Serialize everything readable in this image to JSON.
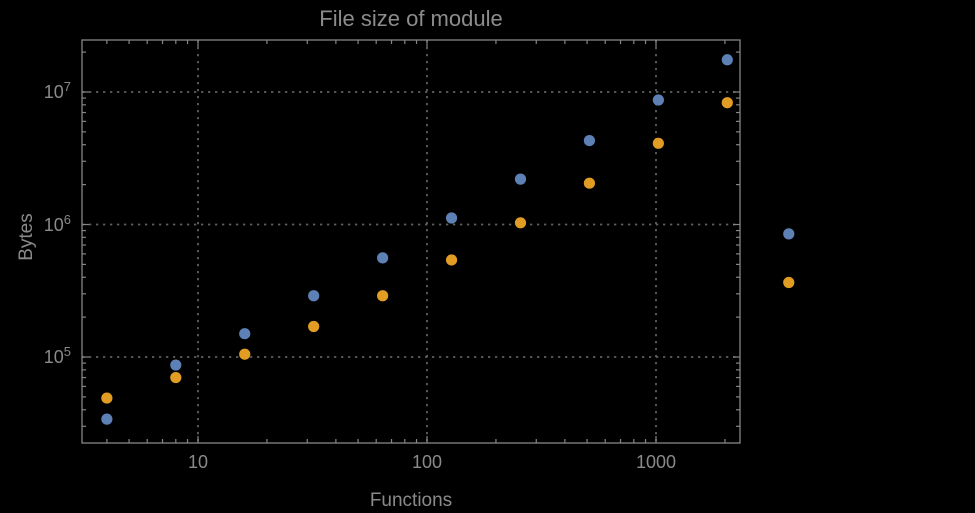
{
  "chart_data": {
    "type": "scatter",
    "title": "File size of module",
    "xlabel": "Functions",
    "ylabel": "Bytes",
    "x_scale": "log10",
    "y_scale": "log10",
    "xlim": [
      3.115,
      2327
    ],
    "ylim": [
      22450,
      24680000
    ],
    "x_ticks": [
      10,
      100,
      1000
    ],
    "x_tick_labels": [
      "10",
      "100",
      "1000"
    ],
    "y_ticks": [
      100000,
      1000000,
      10000000
    ],
    "y_tick_labels": [
      {
        "base": "10",
        "exp": "5"
      },
      {
        "base": "10",
        "exp": "6"
      },
      {
        "base": "10",
        "exp": "7"
      }
    ],
    "grid": "dotted gridlines at major decade ticks, both axes",
    "legend": "none",
    "series": [
      {
        "name": "blue-series",
        "color": "#5E81B5",
        "x": [
          4,
          8,
          16,
          32,
          64,
          128,
          256,
          512,
          1024,
          2048,
          3800
        ],
        "y": [
          34000,
          87000,
          150000,
          290000,
          560000,
          1120000,
          2200000,
          4300000,
          8700000,
          17500000,
          850000
        ]
      },
      {
        "name": "orange-series",
        "color": "#E19C24",
        "x": [
          4,
          8,
          16,
          32,
          64,
          128,
          256,
          512,
          1024,
          2048,
          3800
        ],
        "y": [
          49000,
          70000,
          105000,
          170000,
          290000,
          540000,
          1030000,
          2050000,
          4100000,
          8300000,
          365000
        ]
      }
    ],
    "colors": {
      "background": "#000000",
      "frame": "#868686",
      "grid": "#5f5f5f",
      "labels": "#8a8a8a",
      "title": "#8c8c8c"
    }
  }
}
